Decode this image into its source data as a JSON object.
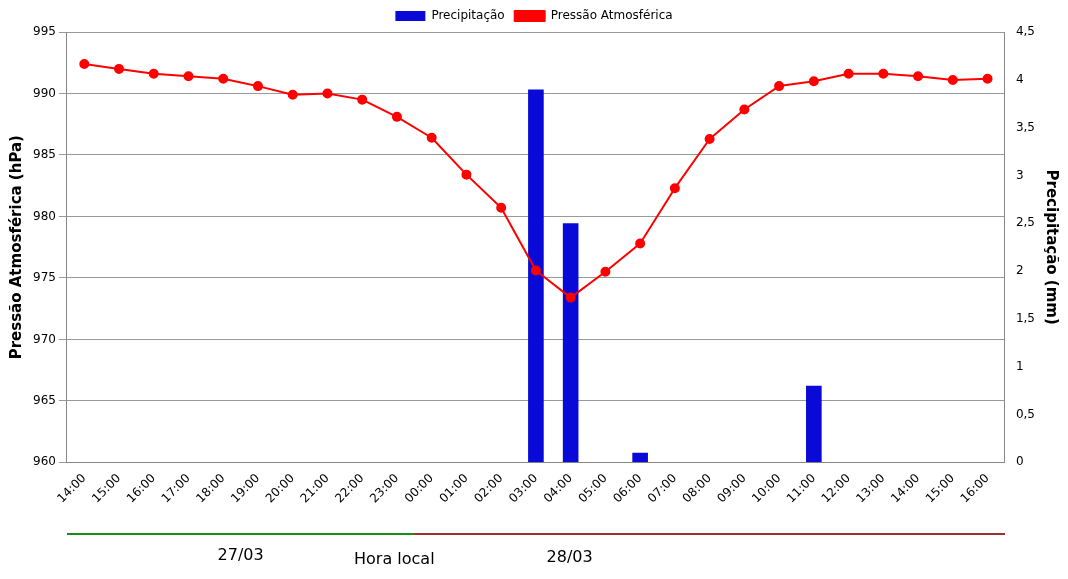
{
  "chart_data": {
    "type": "line",
    "xlabel": "Hora local",
    "ylabel": "Pressão Atmosférica (hPa)",
    "y2label": "Precipitação (mm)",
    "categories": [
      "14:00",
      "15:00",
      "16:00",
      "17:00",
      "18:00",
      "19:00",
      "20:00",
      "21:00",
      "22:00",
      "23:00",
      "00:00",
      "01:00",
      "02:00",
      "03:00",
      "04:00",
      "05:00",
      "06:00",
      "07:00",
      "08:00",
      "09:00",
      "10:00",
      "11:00",
      "12:00",
      "13:00",
      "14:00",
      "15:00",
      "16:00"
    ],
    "series": [
      {
        "name": "Precipitação",
        "type": "bar",
        "axis": "y2",
        "color": "#0a0ad8",
        "values": [
          0,
          0,
          0,
          0,
          0,
          0,
          0,
          0,
          0,
          0,
          0,
          0,
          0,
          3.9,
          2.5,
          0,
          0.1,
          0,
          0,
          0,
          0,
          0.8,
          0,
          0,
          0,
          0,
          0
        ]
      },
      {
        "name": "Pressão Atmosférica",
        "color": "#ff0000",
        "values": [
          992.4,
          992.0,
          991.6,
          991.4,
          991.2,
          990.6,
          989.9,
          990.0,
          989.5,
          988.1,
          986.4,
          983.4,
          980.7,
          975.6,
          973.4,
          975.5,
          977.8,
          982.3,
          986.3,
          988.7,
          990.6,
          991.0,
          991.6,
          991.6,
          991.4,
          991.1,
          991.2
        ]
      }
    ],
    "ylim": [
      960,
      995
    ],
    "yticks": [
      960,
      965,
      970,
      975,
      980,
      985,
      990,
      995
    ],
    "y2lim": [
      0,
      4.5
    ],
    "y2ticks": [
      0,
      {
        "value": 0.5,
        "label": "0,5"
      },
      1,
      {
        "value": 1.5,
        "label": "1,5"
      },
      2,
      {
        "value": 2.5,
        "label": "2,5"
      },
      3,
      {
        "value": 3.5,
        "label": "3,5"
      },
      4,
      {
        "value": 4.5,
        "label": "4,5"
      }
    ],
    "grid": "y",
    "legend": "top",
    "marker": "circle",
    "line_style": "solid",
    "annotations": [
      "27/03",
      "28/03"
    ]
  }
}
